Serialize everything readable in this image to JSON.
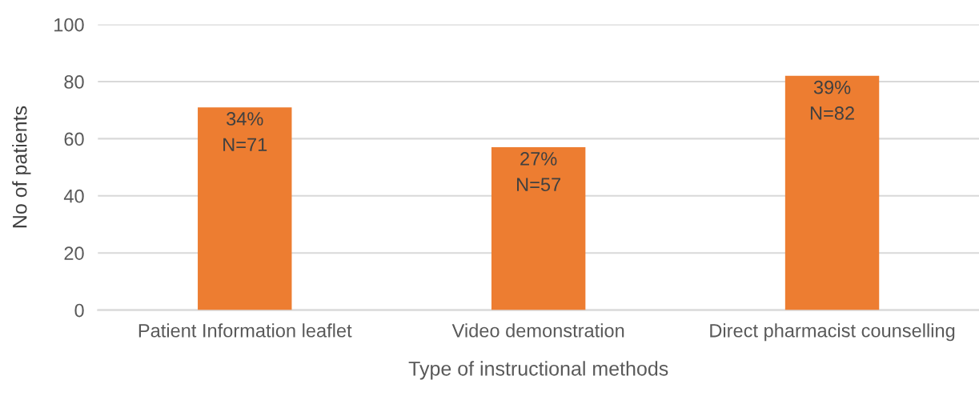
{
  "chart_data": {
    "type": "bar",
    "xlabel": "Type of instructional methods",
    "ylabel": "No of patients",
    "categories": [
      "Patient Information leaflet",
      "Video demonstration",
      "Direct pharmacist counselling"
    ],
    "values": [
      71,
      57,
      82
    ],
    "value_labels": [
      "34%\nN=71",
      "27%\nN=57",
      "39%\nN=82"
    ],
    "color": "#ed7d31",
    "ylim": [
      0,
      100
    ],
    "yticks": [
      0,
      20,
      40,
      60,
      80,
      100
    ],
    "grid": "y",
    "legend": false
  }
}
